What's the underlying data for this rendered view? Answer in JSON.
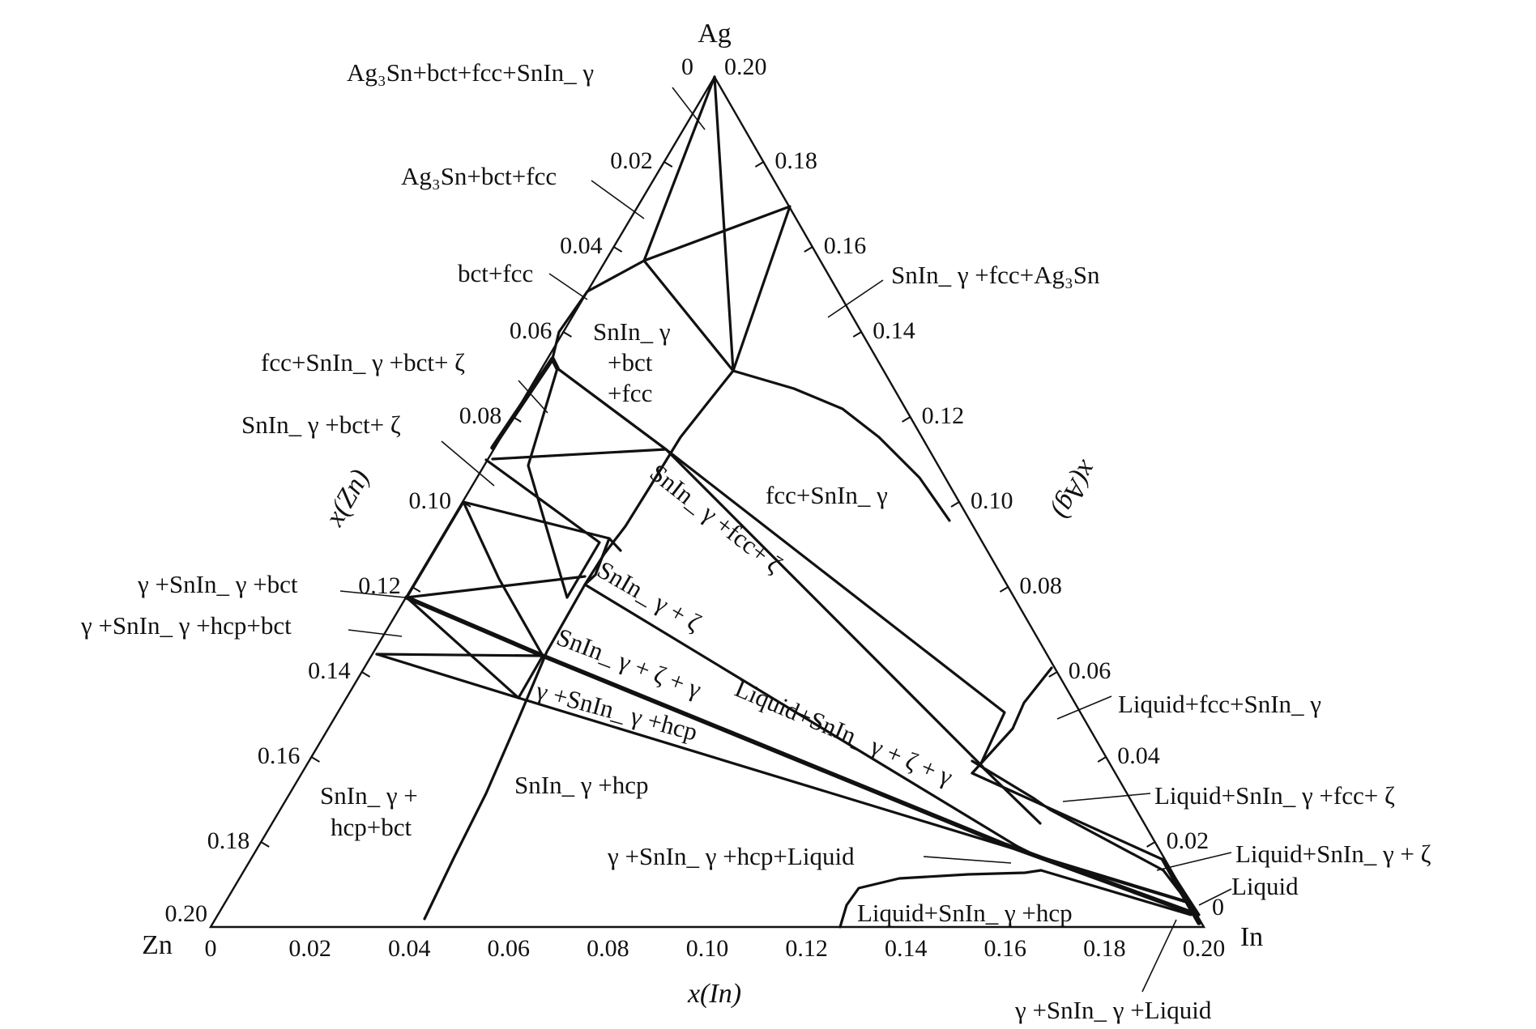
{
  "vertices": {
    "top": "Ag",
    "left": "Zn",
    "right": "In"
  },
  "axes": {
    "bottom": {
      "label": "x(In)",
      "ticks": [
        "0",
        "0.02",
        "0.04",
        "0.06",
        "0.08",
        "0.10",
        "0.12",
        "0.14",
        "0.16",
        "0.18",
        "0.20"
      ]
    },
    "left": {
      "label": "x(Zn)",
      "ticks": [
        "0",
        "0.02",
        "0.04",
        "0.06",
        "0.08",
        "0.10",
        "0.12",
        "0.14",
        "0.16",
        "0.18",
        "0.20"
      ]
    },
    "right": {
      "label": "x(Ag)",
      "ticks": [
        "0",
        "0.02",
        "0.04",
        "0.06",
        "0.08",
        "0.10",
        "0.12",
        "0.14",
        "0.16",
        "0.18",
        "0.20"
      ]
    }
  },
  "regions": {
    "r01": "Ag₃Sn+bct+fcc+SnIn_ γ",
    "r02": "Ag₃Sn+bct+fcc",
    "r03": "bct+fcc",
    "r04a": "SnIn_ γ",
    "r04b": "+bct",
    "r04c": "+fcc",
    "r05": "fcc+SnIn_ γ +bct+ ζ",
    "r06": "SnIn_ γ +bct+ ζ",
    "r07": "SnIn_ γ +fcc+Ag₃Sn",
    "r08": "fcc+SnIn_ γ",
    "r09": "SnIn_ γ +fcc+ ζ",
    "r10": "SnIn_ γ + ζ",
    "r11": "γ +SnIn_ γ +bct",
    "r12": "γ +SnIn_ γ +hcp+bct",
    "r13": "SnIn_ γ + ζ + γ",
    "r14": "γ +SnIn_ γ +hcp",
    "r15": "Liquid+SnIn_ γ + ζ + γ",
    "r16": "SnIn_ γ +hcp",
    "r17a": "SnIn_ γ +",
    "r17b": "hcp+bct",
    "r18": "Liquid+fcc+SnIn_ γ",
    "r19": "Liquid+SnIn_ γ +fcc+ ζ",
    "r20": "Liquid+SnIn_ γ + ζ",
    "r21": "Liquid",
    "r22": "γ +SnIn_ γ +hcp+Liquid",
    "r23": "Liquid+SnIn_ γ +hcp",
    "r24": "γ +SnIn_ γ +Liquid"
  }
}
